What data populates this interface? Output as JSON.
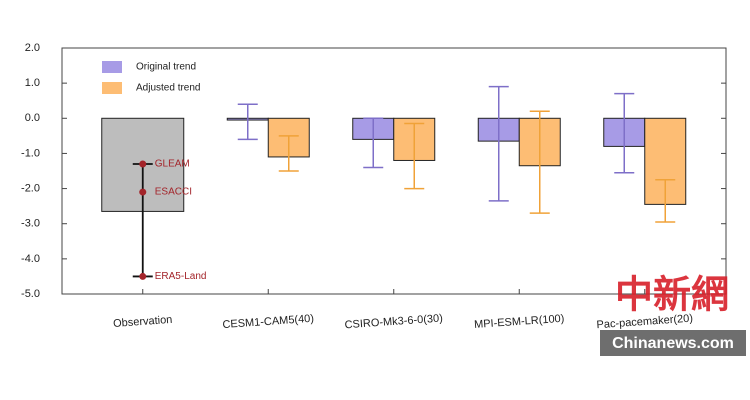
{
  "chart_data": {
    "type": "bar",
    "categories": [
      "Observation",
      "CESM1-CAM5(40)",
      "CSIRO-Mk3-6-0(30)",
      "MPI-ESM-LR(100)",
      "Pac-pacemaker(20)"
    ],
    "ylim": [
      -5,
      2
    ],
    "yticks": [
      {
        "value": -5,
        "label": "-5.0"
      },
      {
        "value": -4,
        "label": "-4.0"
      },
      {
        "value": -3,
        "label": "-3.0"
      },
      {
        "value": -2,
        "label": "-2.0"
      },
      {
        "value": -1,
        "label": "-1.0"
      },
      {
        "value": 0,
        "label": "0.0"
      },
      {
        "value": 1,
        "label": "1.0"
      },
      {
        "value": 2,
        "label": "2.0"
      }
    ],
    "series": [
      {
        "name": "Original trend",
        "color": "#a79be6",
        "whisker_color": "#7e6fc8",
        "values": [
          null,
          -0.05,
          -0.6,
          -0.65,
          -0.8
        ],
        "whisker_low": [
          null,
          -0.6,
          -1.4,
          -2.35,
          -1.55
        ],
        "whisker_high": [
          null,
          0.4,
          0.0,
          0.9,
          0.7
        ]
      },
      {
        "name": "Adjusted trend",
        "color": "#fdbd74",
        "whisker_color": "#f0a238",
        "values": [
          null,
          -1.1,
          -1.2,
          -1.35,
          -2.45
        ],
        "whisker_low": [
          null,
          -1.5,
          -2.0,
          -2.7,
          -2.95
        ],
        "whisker_high": [
          null,
          -0.5,
          -0.15,
          0.2,
          -1.75
        ]
      }
    ],
    "observation": {
      "color": "#bdbdbd",
      "value": -2.65,
      "whisker_low": -4.5,
      "whisker_high": -1.3,
      "points": [
        {
          "label": "GLEAM",
          "value": -1.3
        },
        {
          "label": "ESACCI",
          "value": -2.1
        },
        {
          "label": "ERA5-Land",
          "value": -4.5
        }
      ]
    },
    "watermark": {
      "logo": "中新網",
      "site": "Chinanews.com"
    }
  }
}
